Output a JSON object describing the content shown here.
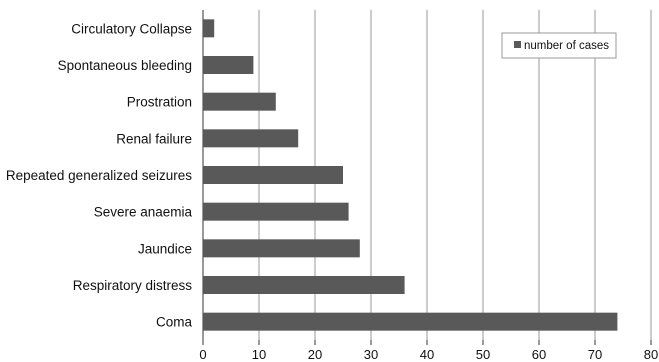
{
  "chart_data": {
    "type": "bar",
    "orientation": "horizontal",
    "categories": [
      "Circulatory Collapse",
      "Spontaneous bleeding",
      "Prostration",
      "Renal failure",
      "Repeated generalized seizures",
      "Severe anaemia",
      "Jaundice",
      "Respiratory distress",
      "Coma"
    ],
    "series": [
      {
        "name": "number of cases",
        "values": [
          2,
          9,
          13,
          17,
          25,
          26,
          28,
          36,
          74
        ],
        "color": "#595959"
      }
    ],
    "xlim": [
      0,
      80
    ],
    "xticks": [
      "0",
      "10",
      "20",
      "30",
      "40",
      "50",
      "60",
      "70",
      "80"
    ],
    "grid": "vertical",
    "legend": "top-right"
  }
}
